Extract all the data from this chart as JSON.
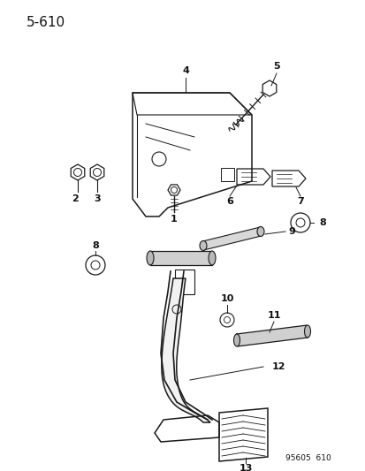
{
  "title": "5–610",
  "background_color": "#ffffff",
  "line_color": "#1a1a1a",
  "text_color": "#111111",
  "figsize": [
    4.14,
    5.33
  ],
  "dpi": 100,
  "watermark": "95605  610"
}
